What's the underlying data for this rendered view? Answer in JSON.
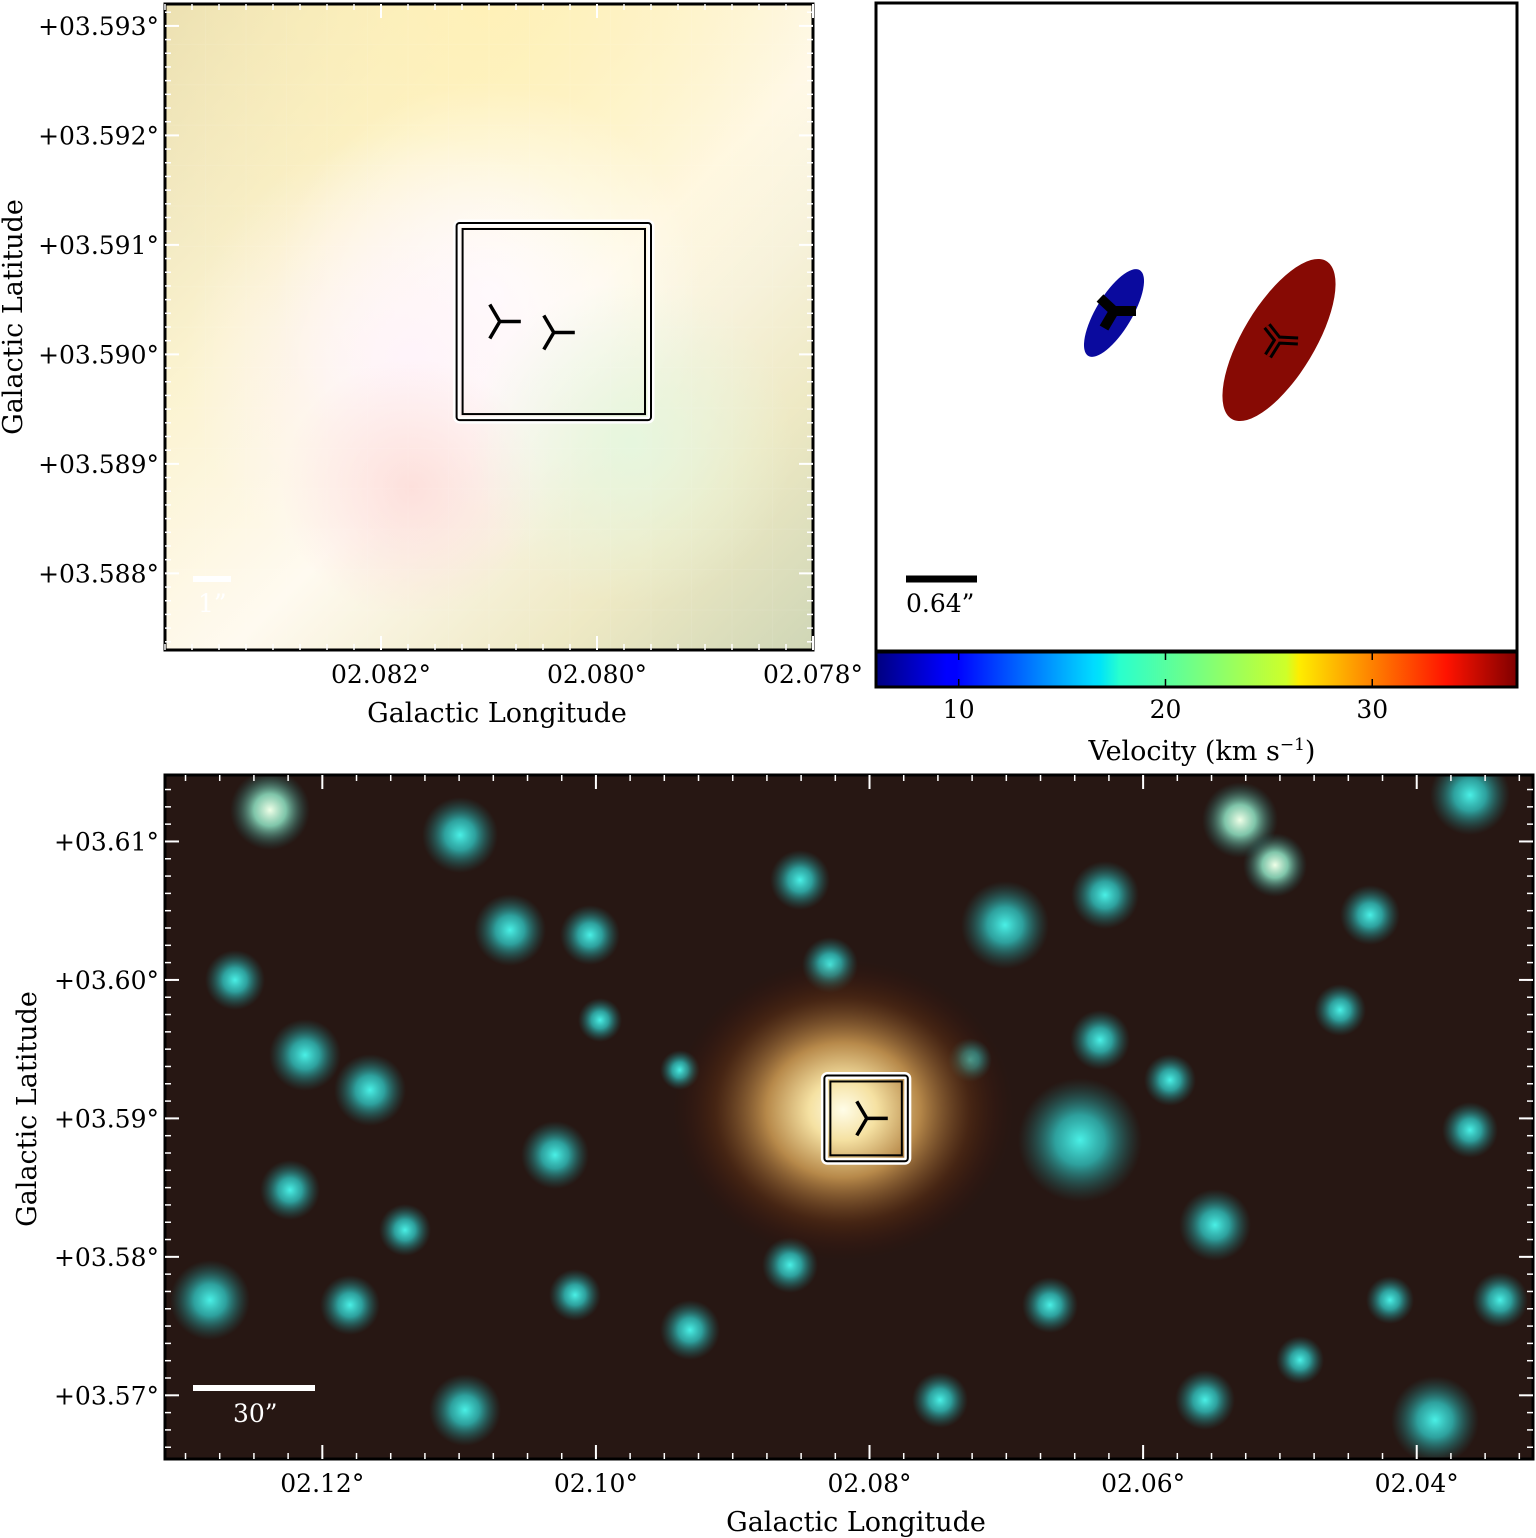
{
  "chart_data": [
    {
      "type": "image",
      "name": "panel-top-left",
      "xlabel": "Galactic Longitude",
      "ylabel": "Galactic Latitude",
      "xlim": [
        2.084,
        2.078
      ],
      "ylim": [
        3.5873,
        3.5932
      ],
      "x_ticks": [
        {
          "value": 2.082,
          "label": "02.082°"
        },
        {
          "value": 2.08,
          "label": "02.080°"
        },
        {
          "value": 2.078,
          "label": "02.078°"
        }
      ],
      "y_ticks": [
        {
          "value": 3.593,
          "label": "+03.593°"
        },
        {
          "value": 3.592,
          "label": "+03.592°"
        },
        {
          "value": 3.591,
          "label": "+03.591°"
        },
        {
          "value": 3.59,
          "label": "+03.590°"
        },
        {
          "value": 3.589,
          "label": "+03.589°"
        },
        {
          "value": 3.588,
          "label": "+03.588°"
        }
      ],
      "scale_bar": {
        "label": "1”"
      },
      "box": {
        "l_min": 2.0813,
        "l_max": 2.0795,
        "b_min": 3.5894,
        "b_max": 3.5912
      },
      "markers": [
        {
          "l": 2.0809,
          "b": 3.5903
        },
        {
          "l": 2.0804,
          "b": 3.5902
        }
      ]
    },
    {
      "type": "ellipses",
      "name": "panel-top-right",
      "scale_bar": {
        "label": "0.64”"
      },
      "ellipses": [
        {
          "velocity": 7,
          "color": "#0a0a9e"
        },
        {
          "velocity": 36,
          "color": "#870a04"
        }
      ],
      "colorbar": {
        "label": "Velocity (km s",
        "label_sup": "−1",
        "label_end": ")",
        "range": [
          6.0,
          37.0
        ],
        "ticks": [
          10,
          20,
          30
        ]
      }
    },
    {
      "type": "image",
      "name": "panel-bottom",
      "xlabel": "Galactic Longitude",
      "ylabel": "Galactic Latitude",
      "xlim": [
        2.1315,
        2.0315
      ],
      "ylim": [
        3.5654,
        3.6148
      ],
      "x_ticks": [
        {
          "value": 2.12,
          "label": "02.12°"
        },
        {
          "value": 2.1,
          "label": "02.10°"
        },
        {
          "value": 2.08,
          "label": "02.08°"
        },
        {
          "value": 2.06,
          "label": "02.06°"
        },
        {
          "value": 2.04,
          "label": "02.04°"
        }
      ],
      "y_ticks": [
        {
          "value": 3.61,
          "label": "+03.61°"
        },
        {
          "value": 3.6,
          "label": "+03.60°"
        },
        {
          "value": 3.59,
          "label": "+03.59°"
        },
        {
          "value": 3.58,
          "label": "+03.58°"
        },
        {
          "value": 3.57,
          "label": "+03.57°"
        }
      ],
      "scale_bar": {
        "label": "30”"
      },
      "box": {
        "l_min": 2.0833,
        "l_max": 2.0772,
        "b_min": 3.5869,
        "b_max": 3.5931
      },
      "markers": [
        {
          "l": 2.0802,
          "b": 3.59
        }
      ]
    }
  ]
}
